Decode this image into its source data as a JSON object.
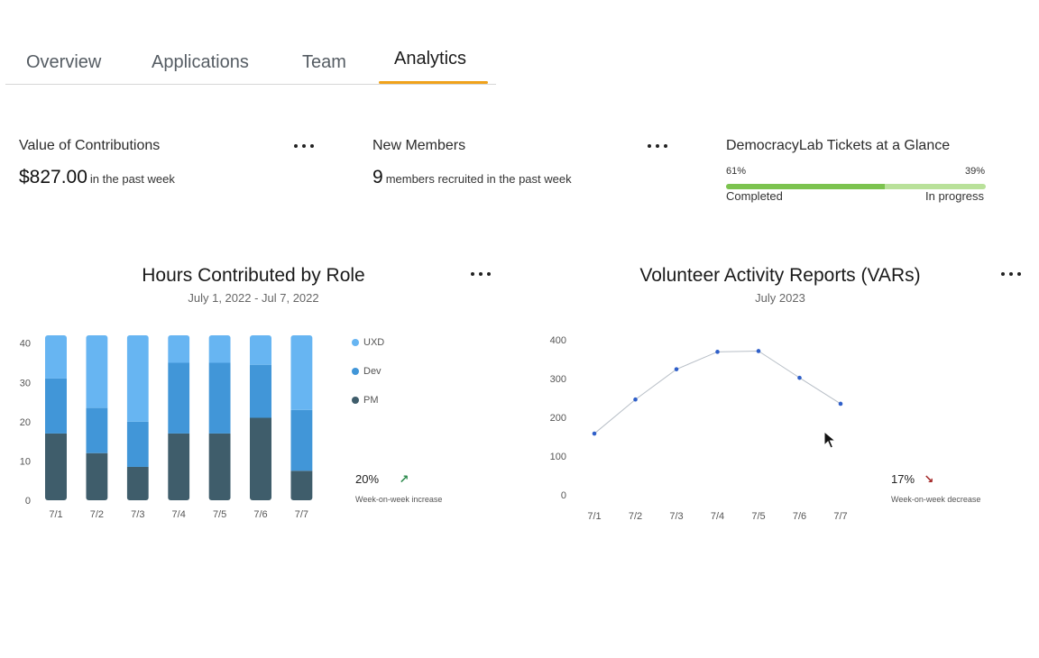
{
  "tabs": [
    {
      "label": "Overview",
      "active": false
    },
    {
      "label": "Applications",
      "active": false
    },
    {
      "label": "Team",
      "active": false
    },
    {
      "label": "Analytics",
      "active": true
    }
  ],
  "cards": {
    "contributions": {
      "title": "Value of Contributions",
      "value": "$827.00",
      "suffix": "in the past week"
    },
    "members": {
      "title": "New Members",
      "value": "9",
      "suffix": "members recruited in the past week"
    },
    "tickets": {
      "title": "DemocracyLab Tickets at a Glance",
      "completed_pct_label": "61%",
      "in_progress_pct_label": "39%",
      "completed_fraction": 0.61,
      "completed_label": "Completed",
      "in_progress_label": "In progress",
      "completed_color": "#7cc34f",
      "in_progress_color": "#b9e19a"
    }
  },
  "hours_chart": {
    "title": "Hours Contributed by Role",
    "subtitle": "July 1, 2022 - Jul 7, 2022",
    "stat_value": "20%",
    "stat_arrow": "↗",
    "stat_note": "Week-on-week increase",
    "stat_color": "#2e8b4e"
  },
  "var_chart": {
    "title": "Volunteer Activity Reports (VARs)",
    "subtitle": "July 2023",
    "stat_value": "17%",
    "stat_arrow": "↘",
    "stat_note": "Week-on-week decrease",
    "stat_color": "#a32626"
  },
  "chart_data": [
    {
      "type": "bar",
      "stacked": true,
      "title": "Hours Contributed by Role",
      "categories": [
        "7/1",
        "7/2",
        "7/3",
        "7/4",
        "7/5",
        "7/6",
        "7/7"
      ],
      "series": [
        {
          "name": "PM",
          "color": "#3f5d6b",
          "values": [
            17,
            12,
            8.5,
            17,
            17,
            21,
            7.5
          ]
        },
        {
          "name": "Dev",
          "color": "#4196d8",
          "values": [
            14,
            11.5,
            11.5,
            18,
            18,
            13.5,
            15.5
          ]
        },
        {
          "name": "UXD",
          "color": "#67b5f2",
          "values": [
            11,
            18.5,
            22,
            7,
            7,
            7.5,
            19
          ]
        }
      ],
      "legend": [
        "UXD",
        "Dev",
        "PM"
      ],
      "yticks": [
        0,
        10,
        20,
        30,
        40
      ],
      "ylim": [
        0,
        42
      ]
    },
    {
      "type": "line",
      "title": "Volunteer Activity Reports (VARs)",
      "categories": [
        "7/1",
        "7/2",
        "7/3",
        "7/4",
        "7/5",
        "7/6",
        "7/7"
      ],
      "values": [
        158,
        246,
        324,
        369,
        371,
        302,
        235
      ],
      "yticks": [
        0,
        100,
        200,
        300,
        400
      ],
      "ylim": [
        0,
        400
      ],
      "line_color": "#b8bfc7",
      "point_color": "#2f5fc9"
    }
  ]
}
